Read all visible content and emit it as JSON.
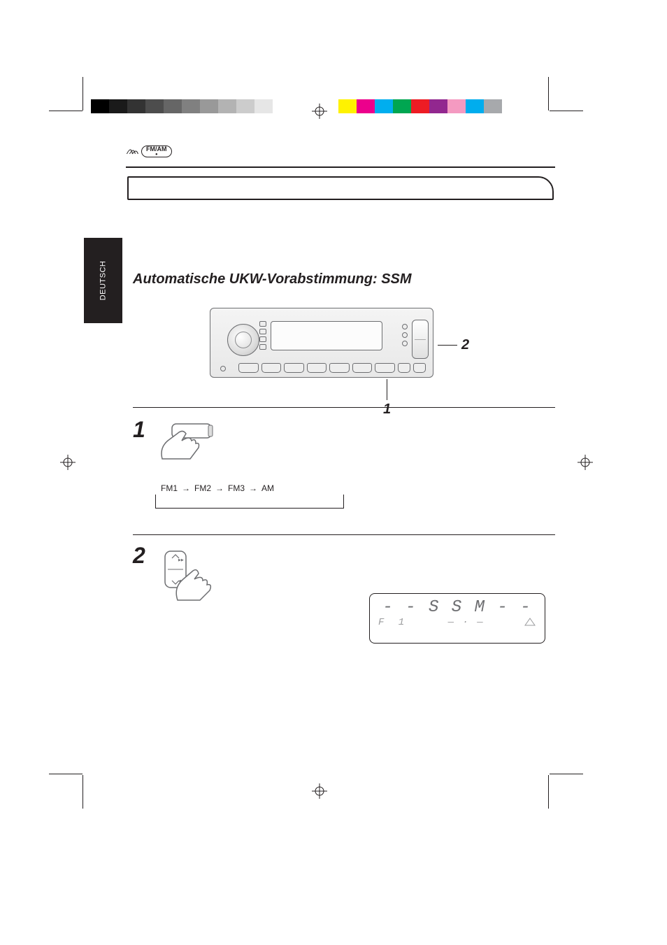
{
  "header": {
    "badge_label": "FM/AM",
    "badge_sub": "●"
  },
  "side_tab": "DEUTSCH",
  "section_title": "Automatische UKW-Vorabstimmung: SSM",
  "callouts": {
    "one": "1",
    "two": "2"
  },
  "steps": {
    "one": "1",
    "two": "2"
  },
  "cycle": [
    "FM1",
    "FM2",
    "FM3",
    "AM"
  ],
  "ssm_display": {
    "top": "- -  S S M  - -",
    "bottom_left": "F 1",
    "bottom_mid": "— · —"
  },
  "swatches_gray": [
    "#000000",
    "#1a1a1a",
    "#333333",
    "#4d4d4d",
    "#666666",
    "#808080",
    "#999999",
    "#b3b3b3",
    "#cccccc",
    "#e6e6e6",
    "#ffffff"
  ],
  "swatches_color": [
    "#fff200",
    "#ec008c",
    "#00aeef",
    "#00a651",
    "#ed1c24",
    "#92278f",
    "#f49ac1",
    "#00adee",
    "#a7a9ac"
  ],
  "colors": {
    "ink": "#231f20",
    "gray": "#6d6e71",
    "lightgray": "#9a9b9d"
  }
}
